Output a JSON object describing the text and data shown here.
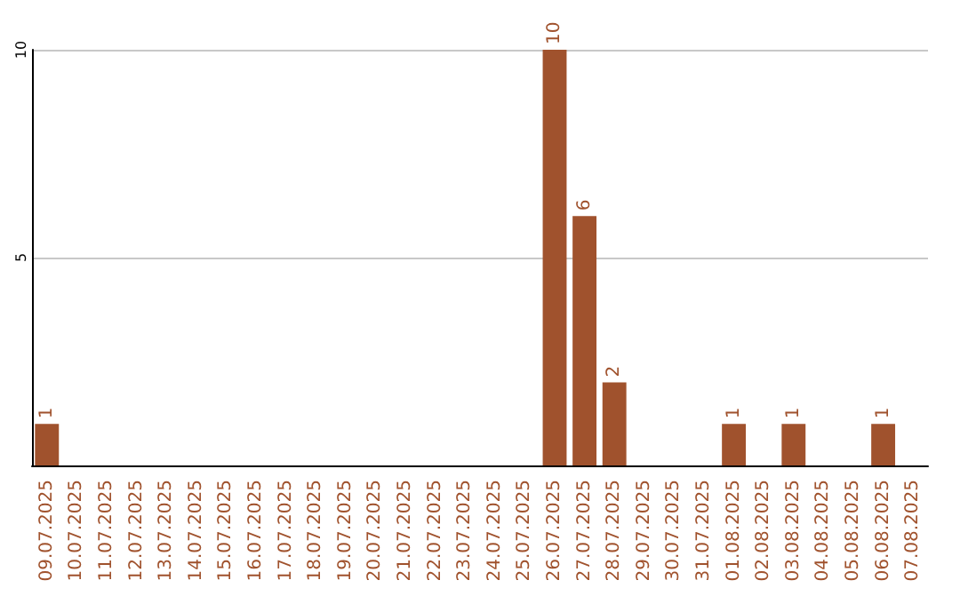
{
  "chart_data": {
    "type": "bar",
    "categories": [
      "09.07.2025",
      "10.07.2025",
      "11.07.2025",
      "12.07.2025",
      "13.07.2025",
      "14.07.2025",
      "15.07.2025",
      "16.07.2025",
      "17.07.2025",
      "18.07.2025",
      "19.07.2025",
      "20.07.2025",
      "21.07.2025",
      "22.07.2025",
      "23.07.2025",
      "24.07.2025",
      "25.07.2025",
      "26.07.2025",
      "27.07.2025",
      "28.07.2025",
      "29.07.2025",
      "30.07.2025",
      "31.07.2025",
      "01.08.2025",
      "02.08.2025",
      "03.08.2025",
      "04.08.2025",
      "05.08.2025",
      "06.08.2025",
      "07.08.2025"
    ],
    "values": [
      1,
      0,
      0,
      0,
      0,
      0,
      0,
      0,
      0,
      0,
      0,
      0,
      0,
      0,
      0,
      0,
      0,
      10,
      6,
      2,
      0,
      0,
      0,
      1,
      0,
      1,
      0,
      0,
      1,
      0
    ],
    "value_labels": [
      "1",
      null,
      null,
      null,
      null,
      null,
      null,
      null,
      null,
      null,
      null,
      null,
      null,
      null,
      null,
      null,
      null,
      "10",
      "6",
      "2",
      null,
      null,
      null,
      "1",
      null,
      "1",
      null,
      null,
      "1",
      null
    ],
    "color": "#a0522d",
    "ylim": [
      0,
      10
    ],
    "yticks": [
      5,
      10
    ],
    "grid": "y"
  }
}
